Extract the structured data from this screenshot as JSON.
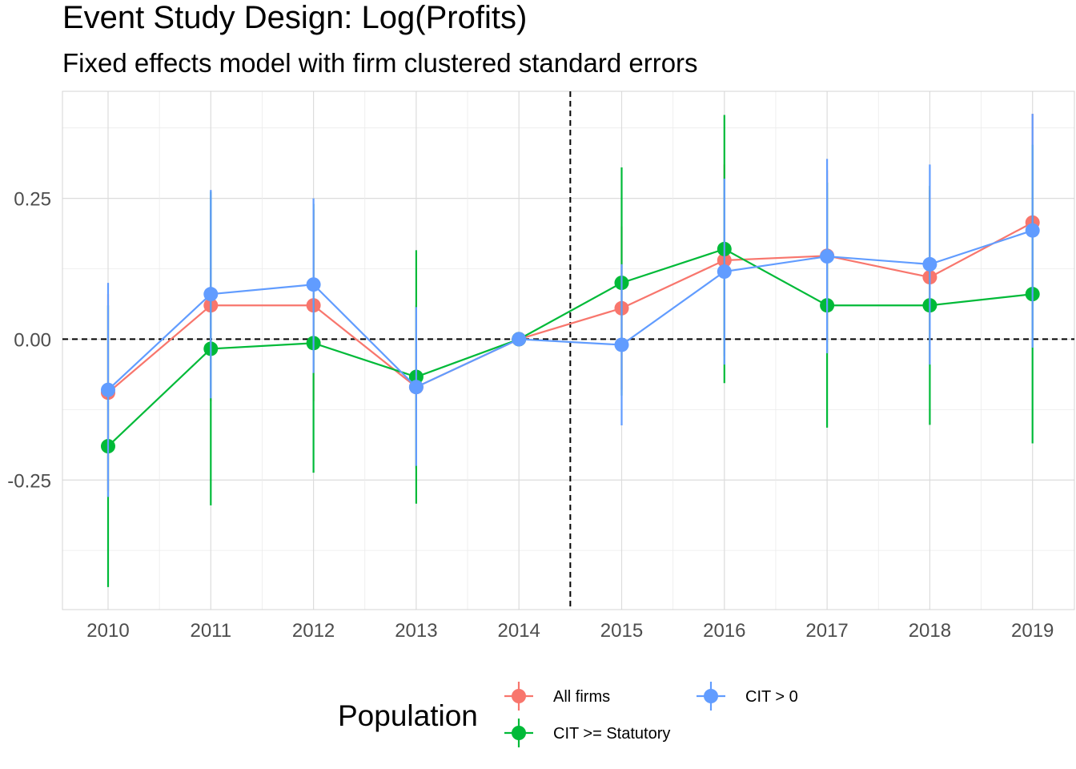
{
  "chart_data": {
    "type": "line",
    "title": "Event Study Design: Log(Profits)",
    "subtitle": "Fixed effects model with firm clustered standard errors",
    "xlabel": "",
    "ylabel": "",
    "x": [
      "2010",
      "2011",
      "2012",
      "2013",
      "2014",
      "2015",
      "2016",
      "2017",
      "2018",
      "2019"
    ],
    "ylim": [
      -0.48,
      0.44
    ],
    "yticks": [
      -0.25,
      0.0,
      0.25
    ],
    "ytick_labels": [
      "-0.25",
      "0.00",
      "0.25"
    ],
    "reference_lines": {
      "horizontal": 0.0,
      "vertical_between": [
        "2014",
        "2015"
      ]
    },
    "grid": true,
    "legend": {
      "title": "Population",
      "position": "bottom"
    },
    "series": [
      {
        "name": "All firms",
        "color": "#F8766D",
        "values": [
          -0.095,
          0.06,
          0.06,
          -0.085,
          0.0,
          0.055,
          0.14,
          0.148,
          0.11,
          0.207
        ],
        "lower": [
          -0.27,
          -0.11,
          -0.11,
          -0.23,
          0.0,
          -0.09,
          -0.03,
          -0.005,
          -0.045,
          0.01
        ],
        "upper": [
          0.08,
          0.23,
          0.23,
          0.06,
          0.0,
          0.2,
          0.31,
          0.3,
          0.265,
          0.4
        ]
      },
      {
        "name": "CIT >= Statutory",
        "color": "#00BA38",
        "values": [
          -0.19,
          -0.017,
          -0.007,
          -0.067,
          0.0,
          0.1,
          0.16,
          0.06,
          0.06,
          0.08
        ],
        "lower": [
          -0.44,
          -0.295,
          -0.237,
          -0.292,
          0.0,
          -0.1,
          -0.078,
          -0.157,
          -0.152,
          -0.185
        ],
        "upper": [
          0.06,
          0.262,
          0.24,
          0.158,
          0.0,
          0.305,
          0.398,
          0.278,
          0.272,
          0.345
        ]
      },
      {
        "name": "CIT > 0",
        "color": "#619CFF",
        "values": [
          -0.09,
          0.08,
          0.097,
          -0.085,
          0.0,
          -0.01,
          0.12,
          0.147,
          0.133,
          0.193
        ],
        "lower": [
          -0.28,
          -0.105,
          -0.06,
          -0.225,
          0.0,
          -0.153,
          -0.045,
          -0.025,
          -0.045,
          -0.015
        ],
        "upper": [
          0.1,
          0.265,
          0.25,
          0.057,
          0.0,
          0.133,
          0.285,
          0.32,
          0.31,
          0.4
        ]
      }
    ]
  }
}
